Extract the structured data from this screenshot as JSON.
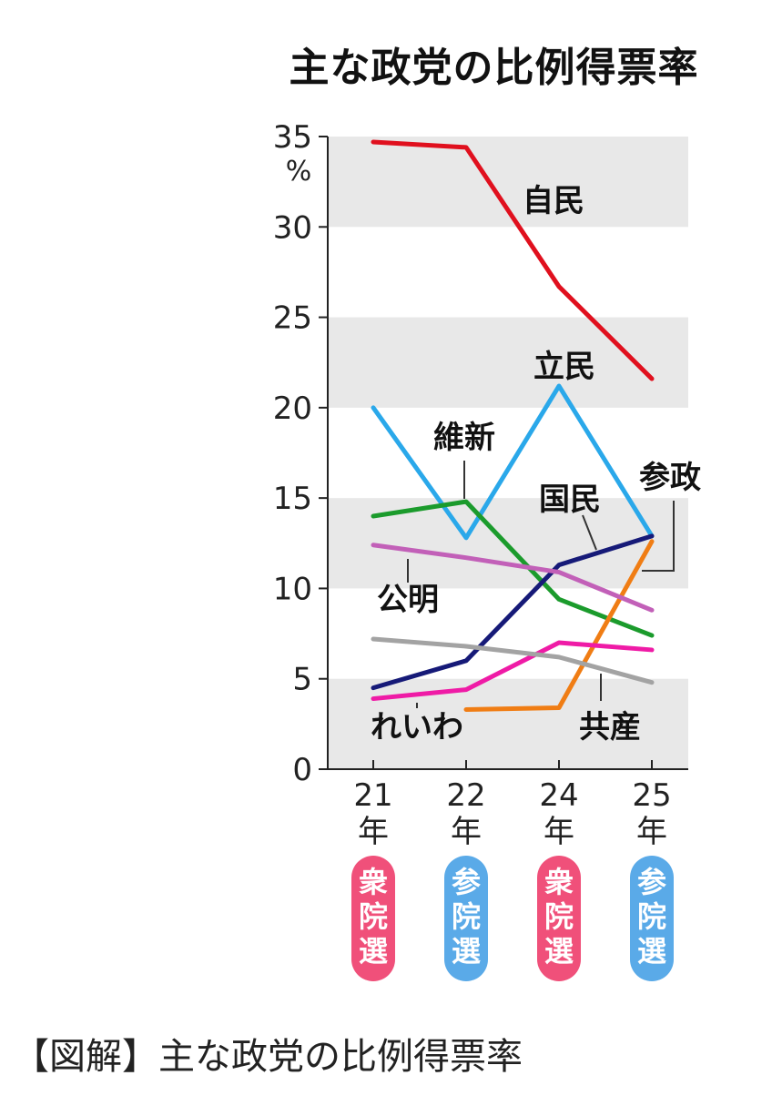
{
  "chart_data": {
    "type": "line",
    "title": "主な政党の比例得票率",
    "unit": "%",
    "ylim": [
      0,
      35
    ],
    "yticks": [
      "0",
      "5",
      "10",
      "15",
      "20",
      "25",
      "30",
      "35"
    ],
    "bands": true,
    "categories": [
      {
        "year": "21",
        "nen": "年",
        "election": "衆院選",
        "color": "#f0507a"
      },
      {
        "year": "22",
        "nen": "年",
        "election": "参院選",
        "color": "#5aaae8"
      },
      {
        "year": "24",
        "nen": "年",
        "election": "衆院選",
        "color": "#f0507a"
      },
      {
        "year": "25",
        "nen": "年",
        "election": "参院選",
        "color": "#5aaae8"
      }
    ],
    "series": [
      {
        "name": "自民",
        "color": "#e0101e",
        "values": [
          34.7,
          34.4,
          26.7,
          21.6
        ]
      },
      {
        "name": "立民",
        "color": "#2aa8ea",
        "values": [
          20.0,
          12.8,
          21.2,
          12.9
        ]
      },
      {
        "name": "維新",
        "color": "#1b9b2c",
        "values": [
          14.0,
          14.8,
          9.4,
          7.4
        ]
      },
      {
        "name": "国民",
        "color": "#161a78",
        "values": [
          4.5,
          6.0,
          11.3,
          12.9
        ]
      },
      {
        "name": "参政",
        "color": "#f07d14",
        "values": [
          null,
          3.3,
          3.4,
          12.6
        ]
      },
      {
        "name": "公明",
        "color": "#c260b8",
        "values": [
          12.4,
          11.7,
          10.9,
          8.8
        ]
      },
      {
        "name": "れいわ",
        "color": "#ef1ba6",
        "values": [
          3.9,
          4.4,
          7.0,
          6.6
        ]
      },
      {
        "name": "共産",
        "color": "#a3a3a3",
        "values": [
          7.2,
          6.8,
          6.2,
          4.8
        ]
      }
    ]
  },
  "caption": "【図解】主な政党の比例得票率"
}
